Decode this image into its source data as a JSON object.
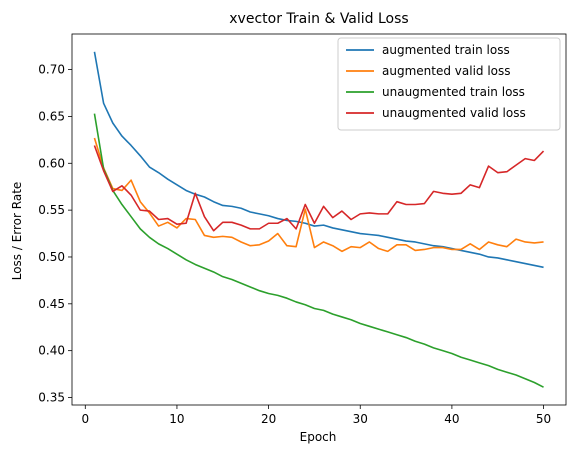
{
  "chart_data": {
    "type": "line",
    "title": "xvector Train & Valid Loss",
    "xlabel": "Epoch",
    "ylabel": "Loss / Error Rate",
    "xlim": [
      -1.45,
      52.45
    ],
    "ylim": [
      0.342,
      0.738
    ],
    "xticks": [
      0,
      10,
      20,
      30,
      40,
      50
    ],
    "yticks": [
      0.35,
      0.4,
      0.45,
      0.5,
      0.55,
      0.6,
      0.65,
      0.7
    ],
    "ytick_labels": [
      "0.35",
      "0.40",
      "0.45",
      "0.50",
      "0.55",
      "0.60",
      "0.65",
      "0.70"
    ],
    "grid": false,
    "legend_position": "top-right",
    "x": [
      1,
      2,
      3,
      4,
      5,
      6,
      7,
      8,
      9,
      10,
      11,
      12,
      13,
      14,
      15,
      16,
      17,
      18,
      19,
      20,
      21,
      22,
      23,
      24,
      25,
      26,
      27,
      28,
      29,
      30,
      31,
      32,
      33,
      34,
      35,
      36,
      37,
      38,
      39,
      40,
      41,
      42,
      43,
      44,
      45,
      46,
      47,
      48,
      49,
      50
    ],
    "series": [
      {
        "name": "augmented train loss",
        "color": "#1f77b4",
        "values": [
          0.719,
          0.664,
          0.643,
          0.629,
          0.619,
          0.608,
          0.596,
          0.59,
          0.583,
          0.577,
          0.571,
          0.567,
          0.564,
          0.559,
          0.555,
          0.554,
          0.552,
          0.548,
          0.546,
          0.544,
          0.541,
          0.539,
          0.538,
          0.536,
          0.533,
          0.534,
          0.531,
          0.529,
          0.527,
          0.525,
          0.524,
          0.523,
          0.521,
          0.519,
          0.517,
          0.516,
          0.514,
          0.512,
          0.511,
          0.509,
          0.507,
          0.505,
          0.503,
          0.5,
          0.499,
          0.497,
          0.495,
          0.493,
          0.491,
          0.489
        ]
      },
      {
        "name": "augmented valid loss",
        "color": "#ff7f0e",
        "values": [
          0.627,
          0.595,
          0.573,
          0.571,
          0.582,
          0.559,
          0.547,
          0.533,
          0.537,
          0.531,
          0.541,
          0.54,
          0.523,
          0.521,
          0.522,
          0.521,
          0.516,
          0.512,
          0.513,
          0.517,
          0.525,
          0.512,
          0.511,
          0.551,
          0.51,
          0.516,
          0.512,
          0.506,
          0.511,
          0.51,
          0.516,
          0.509,
          0.506,
          0.513,
          0.513,
          0.507,
          0.508,
          0.51,
          0.51,
          0.508,
          0.508,
          0.514,
          0.508,
          0.516,
          0.513,
          0.511,
          0.519,
          0.516,
          0.515,
          0.516
        ]
      },
      {
        "name": "unaugmented train loss",
        "color": "#2ca02c",
        "values": [
          0.653,
          0.594,
          0.571,
          0.556,
          0.543,
          0.53,
          0.521,
          0.514,
          0.509,
          0.503,
          0.497,
          0.492,
          0.488,
          0.484,
          0.479,
          0.476,
          0.472,
          0.468,
          0.464,
          0.461,
          0.459,
          0.456,
          0.452,
          0.449,
          0.445,
          0.443,
          0.439,
          0.436,
          0.433,
          0.429,
          0.426,
          0.423,
          0.42,
          0.417,
          0.414,
          0.41,
          0.407,
          0.403,
          0.4,
          0.397,
          0.393,
          0.39,
          0.387,
          0.384,
          0.38,
          0.377,
          0.374,
          0.37,
          0.366,
          0.361
        ]
      },
      {
        "name": "unaugmented valid loss",
        "color": "#d62728",
        "values": [
          0.619,
          0.592,
          0.57,
          0.576,
          0.566,
          0.55,
          0.549,
          0.54,
          0.541,
          0.535,
          0.536,
          0.568,
          0.543,
          0.528,
          0.537,
          0.537,
          0.534,
          0.53,
          0.53,
          0.536,
          0.536,
          0.541,
          0.53,
          0.556,
          0.536,
          0.554,
          0.542,
          0.549,
          0.54,
          0.546,
          0.547,
          0.546,
          0.546,
          0.559,
          0.556,
          0.556,
          0.557,
          0.57,
          0.568,
          0.567,
          0.568,
          0.577,
          0.574,
          0.597,
          0.59,
          0.591,
          0.598,
          0.605,
          0.603,
          0.613
        ]
      }
    ]
  }
}
